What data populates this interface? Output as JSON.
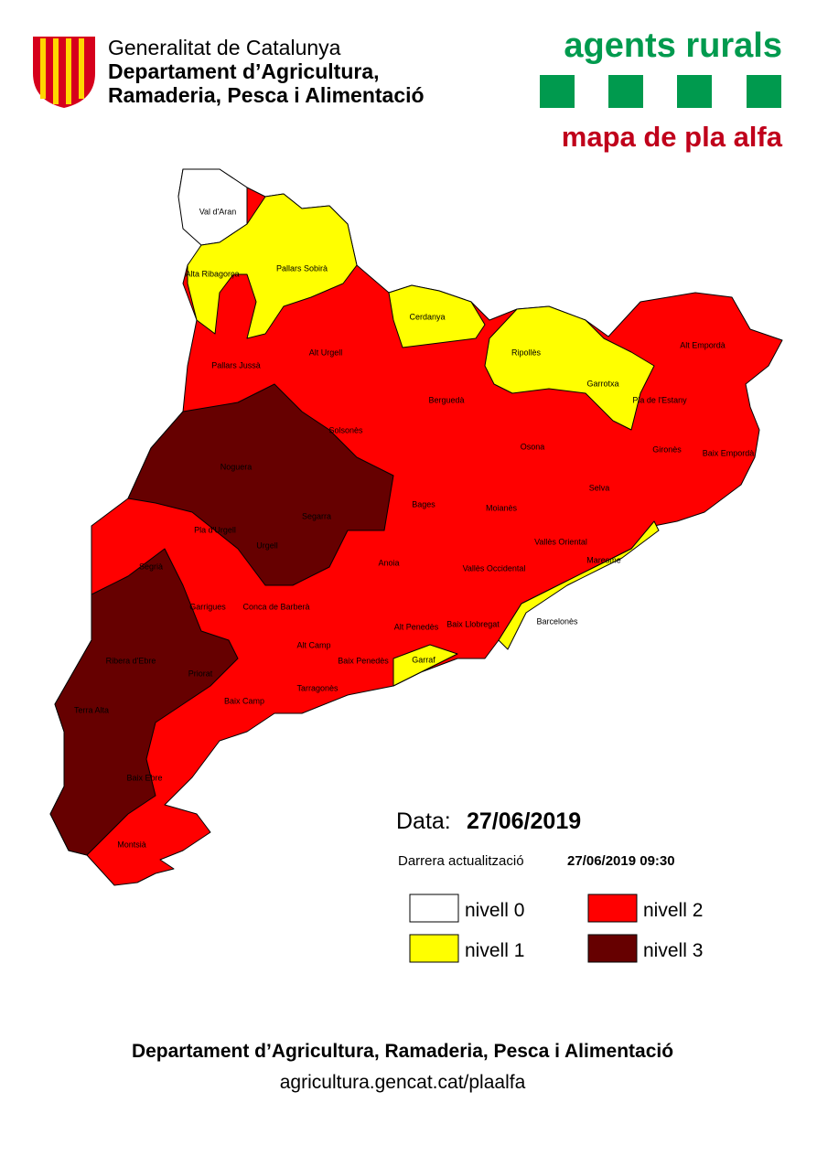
{
  "header": {
    "org": "Generalitat de Catalunya",
    "dept_line1": "Departament d’Agricultura,",
    "dept_line2": "Ramaderia, Pesca i Alimentació",
    "brand": "agents rurals",
    "map_title": "mapa de pla alfa"
  },
  "regions": [
    "Val d'Aran",
    "Pallars Sobirà",
    "Alta Ribagorça",
    "Cerdanya",
    "Pallars Jussà",
    "Alt Urgell",
    "Ripollès",
    "Alt Empordà",
    "Garrotxa",
    "Berguedà",
    "Pla de l'Estany",
    "Solsonès",
    "Osona",
    "Gironès",
    "Baix Empordà",
    "Noguera",
    "Selva",
    "Bages",
    "Moianès",
    "Segarra",
    "Pla d'Urgell",
    "Urgell",
    "Vallès Oriental",
    "Segrià",
    "Anoia",
    "Vallès Occidental",
    "Maresme",
    "Garrigues",
    "Conca de Barberà",
    "Alt Penedès",
    "Baix Llobregat",
    "Barcelonès",
    "Ribera d'Ebre",
    "Alt Camp",
    "Baix Penedès",
    "Garraf",
    "Priorat",
    "Baix Camp",
    "Tarragonès",
    "Terra Alta",
    "Baix Ebre",
    "Montsià"
  ],
  "info": {
    "date_label": "Data:",
    "date": "27/06/2019",
    "update_label": "Darrera actualització",
    "update": "27/06/2019 09:30"
  },
  "legend": [
    {
      "label": "nivell 0",
      "color": "#ffffff"
    },
    {
      "label": "nivell 1",
      "color": "#ffff00"
    },
    {
      "label": "nivell 2",
      "color": "#ff0000"
    },
    {
      "label": "nivell 3",
      "color": "#660000"
    }
  ],
  "footer": {
    "dept": "Departament d’Agricultura, Ramaderia, Pesca i Alimentació",
    "url": "agricultura.gencat.cat/plaalfa"
  }
}
